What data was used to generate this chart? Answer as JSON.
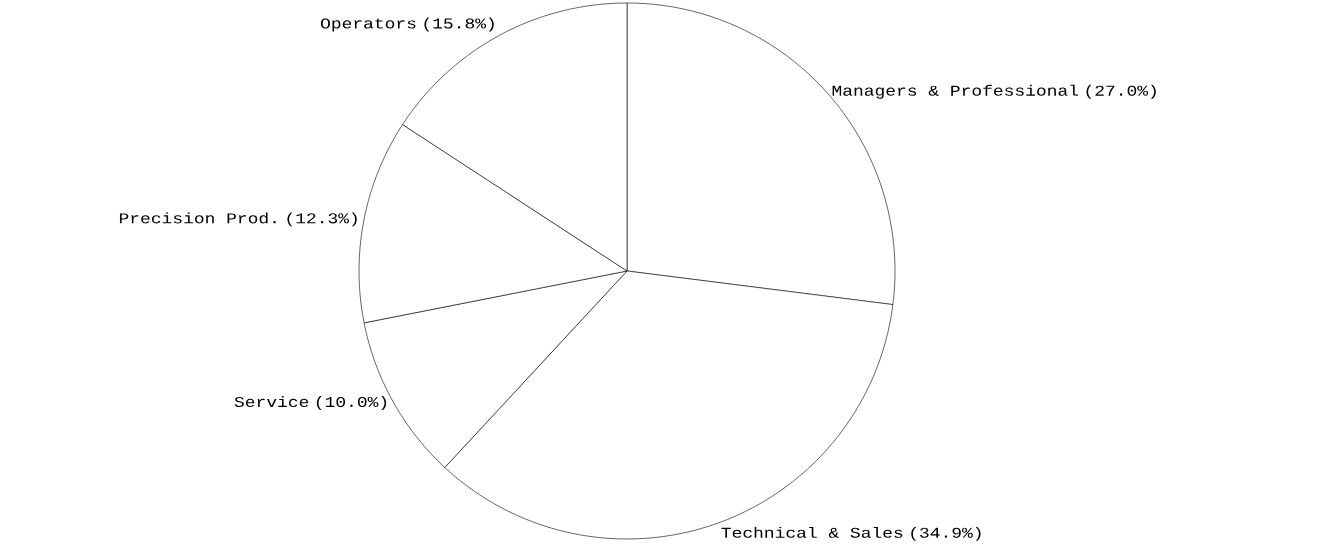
{
  "chart_data": {
    "type": "pie",
    "categories": [
      "Managers & Professional",
      "Technical & Sales",
      "Service",
      "Precision Prod.",
      "Operators"
    ],
    "values": [
      27.0,
      34.9,
      10.0,
      12.3,
      15.8
    ],
    "value_labels": [
      "(27.0%)",
      "(34.9%)",
      "(10.0%)",
      "(12.3%)",
      "(15.8%)"
    ],
    "colors": [
      "#ffffff",
      "#ffffff",
      "#ffffff",
      "#ffffff",
      "#ffffff"
    ]
  }
}
